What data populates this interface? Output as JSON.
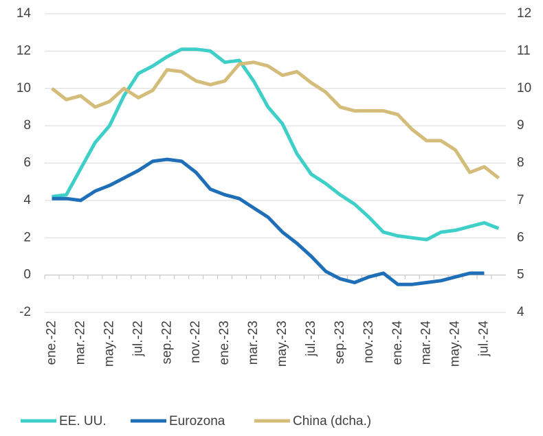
{
  "chart_data": {
    "type": "line",
    "categories": [
      "ene.-22",
      null,
      "mar.-22",
      null,
      "may.-22",
      null,
      "jul.-22",
      null,
      "sep.-22",
      null,
      "nov.-22",
      null,
      "ene.-23",
      null,
      "mar.-23",
      null,
      "may.-23",
      null,
      "jul.-23",
      null,
      "sep.-23",
      null,
      "nov.-23",
      null,
      "ene.-24",
      null,
      "mar.-24",
      null,
      "may.-24",
      null,
      "jul.-24",
      null
    ],
    "series": [
      {
        "name": "EE. UU.",
        "color": "#3ecfc8",
        "values": [
          4.2,
          4.3,
          5.7,
          7.1,
          8.0,
          9.6,
          10.8,
          11.2,
          11.7,
          12.1,
          12.1,
          12.0,
          11.4,
          11.5,
          10.4,
          9.0,
          8.1,
          6.5,
          5.4,
          4.9,
          4.3,
          3.8,
          3.1,
          2.3,
          2.1,
          2.0,
          1.9,
          2.3,
          2.4,
          2.6,
          2.8,
          2.5
        ]
      },
      {
        "name": "Eurozona",
        "color": "#1f6fb8",
        "values": [
          4.1,
          4.1,
          4.0,
          4.5,
          4.8,
          5.2,
          5.6,
          6.1,
          6.2,
          6.1,
          5.5,
          4.6,
          4.3,
          4.1,
          3.6,
          3.1,
          2.3,
          1.7,
          1.0,
          0.2,
          -0.2,
          -0.4,
          -0.1,
          0.1,
          -0.5,
          -0.5,
          -0.4,
          -0.3,
          -0.1,
          0.1,
          0.1,
          null
        ]
      },
      {
        "name": "China (dcha.)",
        "color": "#d4bc7a",
        "axis": "y2",
        "values": [
          10.0,
          9.7,
          9.8,
          9.5,
          9.65,
          10.0,
          9.75,
          9.95,
          10.5,
          10.45,
          10.2,
          10.1,
          10.2,
          10.65,
          10.7,
          10.6,
          10.35,
          10.45,
          10.15,
          9.9,
          9.5,
          9.4,
          9.4,
          9.4,
          9.3,
          8.9,
          8.6,
          8.6,
          8.35,
          7.75,
          7.9,
          7.6
        ]
      }
    ],
    "ylim": [
      -2,
      14
    ],
    "yticks": [
      -2,
      0,
      2,
      4,
      6,
      8,
      10,
      12,
      14
    ],
    "y2lim": [
      4,
      12
    ],
    "y2ticks": [
      4,
      5,
      6,
      7,
      8,
      9,
      10,
      11,
      12
    ],
    "grid": true,
    "legend": "bottom"
  }
}
